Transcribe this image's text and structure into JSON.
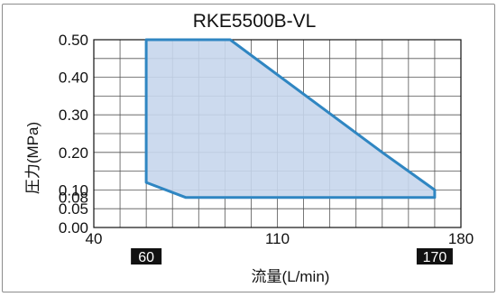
{
  "chart_data": {
    "type": "area",
    "title": "RKE5500B-VL",
    "xlabel": "流量(L/min)",
    "ylabel": "圧力(MPa)",
    "xlim": [
      40,
      180
    ],
    "ylim": [
      0,
      0.5
    ],
    "x_minor_step": 10,
    "y_minor_step": 0.05,
    "x_ticks": [
      40,
      110,
      180
    ],
    "x_tick_labels": [
      "40",
      "110",
      "180"
    ],
    "y_ticks": [
      0.5,
      0.4,
      0.3,
      0.2,
      0.1,
      0.08,
      0.05,
      0.0
    ],
    "y_tick_labels": [
      "0.50",
      "0.40",
      "0.30",
      "0.20",
      "0.10",
      "0.08",
      "0.05",
      "0.00"
    ],
    "marker_badges": [
      {
        "x": 60,
        "label": "60"
      },
      {
        "x": 170,
        "label": "170"
      }
    ],
    "region": [
      {
        "x": 60,
        "y": 0.5
      },
      {
        "x": 92,
        "y": 0.5
      },
      {
        "x": 150,
        "y": 0.2
      },
      {
        "x": 160,
        "y": 0.15
      },
      {
        "x": 170,
        "y": 0.1
      },
      {
        "x": 170,
        "y": 0.08
      },
      {
        "x": 75,
        "y": 0.08
      },
      {
        "x": 60,
        "y": 0.12
      }
    ],
    "grid": true,
    "colors": {
      "fill": "#c7d6ec",
      "line": "#2f86c2",
      "badge": "#111111",
      "badge_text": "#ffffff"
    }
  }
}
